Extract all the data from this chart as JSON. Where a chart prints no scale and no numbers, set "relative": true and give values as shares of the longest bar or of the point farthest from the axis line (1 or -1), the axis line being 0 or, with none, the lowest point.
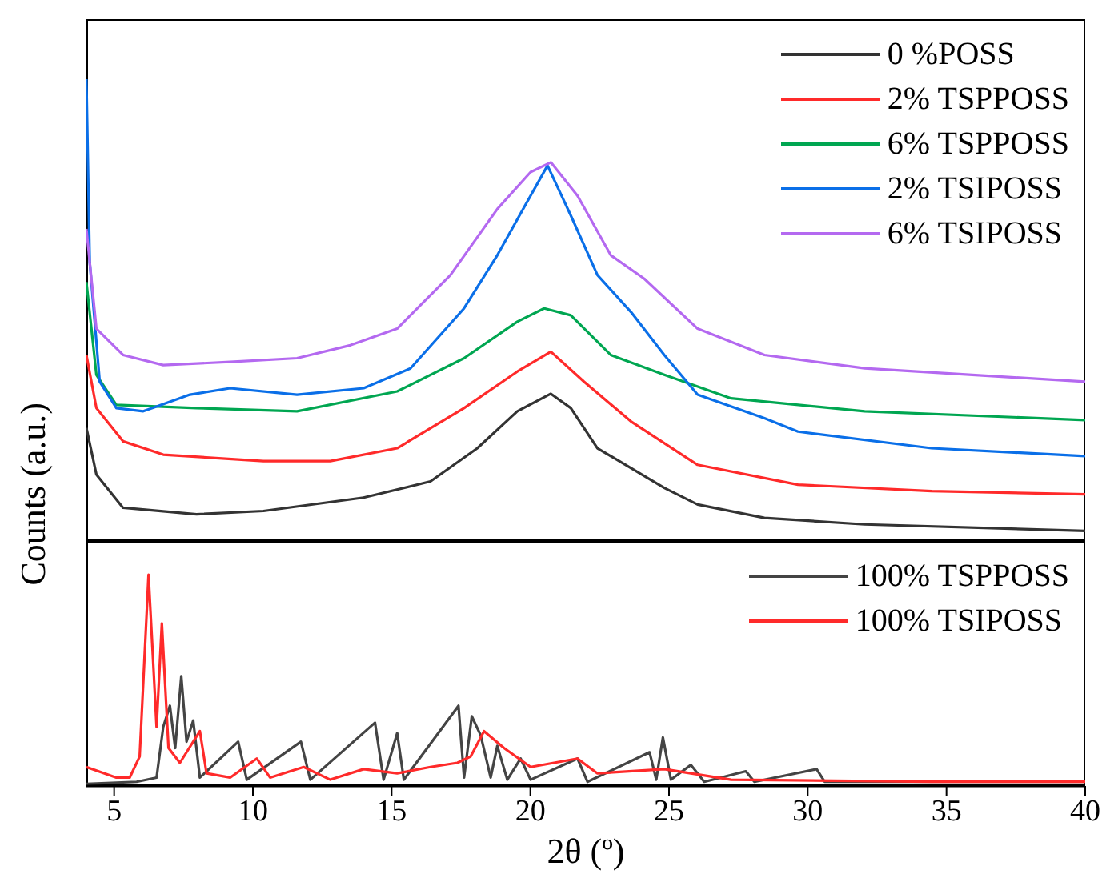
{
  "chart_data": [
    {
      "type": "line",
      "relative": true,
      "ylabel": "Counts (a.u.)",
      "xlim": [
        4,
        40
      ],
      "xticks": [
        5,
        10,
        15,
        20,
        25,
        30,
        35,
        40
      ],
      "tick_labels": false,
      "legend": "top right",
      "series": [
        {
          "name": "0 %POSS",
          "color": "#333333",
          "x": [
            4,
            4.36,
            5.32,
            7.97,
            10.38,
            13.99,
            16.4,
            18.09,
            19.53,
            20.74,
            21.46,
            22.42,
            23.63,
            24.83,
            26.03,
            28.44,
            32.05,
            40
          ],
          "values": [
            0.245,
            0.144,
            0.072,
            0.058,
            0.065,
            0.094,
            0.129,
            0.201,
            0.281,
            0.319,
            0.288,
            0.201,
            0.158,
            0.115,
            0.079,
            0.05,
            0.036,
            0.022
          ]
        },
        {
          "name": "2% TSPPOSS",
          "color": "#ff2a2a",
          "x": [
            4,
            4.36,
            5.32,
            6.77,
            10.38,
            12.79,
            15.2,
            17.61,
            19.53,
            20.74,
            21.94,
            23.63,
            26.03,
            29.65,
            34.46,
            40
          ],
          "values": [
            0.403,
            0.288,
            0.216,
            0.187,
            0.173,
            0.173,
            0.201,
            0.288,
            0.367,
            0.41,
            0.345,
            0.259,
            0.165,
            0.122,
            0.108,
            0.101
          ]
        },
        {
          "name": "6% TSPPOSS",
          "color": "#00a651",
          "x": [
            4,
            4.36,
            5.08,
            7.97,
            11.59,
            15.2,
            17.61,
            19.53,
            20.5,
            21.46,
            22.9,
            24.83,
            27.24,
            32.05,
            40
          ],
          "values": [
            0.561,
            0.36,
            0.295,
            0.288,
            0.281,
            0.324,
            0.396,
            0.475,
            0.504,
            0.489,
            0.403,
            0.36,
            0.309,
            0.281,
            0.262
          ]
        },
        {
          "name": "2% TSIPOSS",
          "color": "#0a6fe8",
          "x": [
            4,
            4.12,
            4.48,
            5.08,
            6.05,
            7.73,
            9.18,
            11.59,
            13.99,
            15.68,
            17.61,
            18.81,
            20.01,
            20.62,
            21.46,
            22.42,
            23.63,
            24.83,
            26.03,
            28.44,
            29.65,
            34.46,
            40
          ],
          "values": [
            1,
            0.604,
            0.345,
            0.288,
            0.281,
            0.317,
            0.331,
            0.317,
            0.331,
            0.374,
            0.504,
            0.619,
            0.748,
            0.813,
            0.705,
            0.576,
            0.496,
            0.403,
            0.317,
            0.266,
            0.237,
            0.201,
            0.184
          ]
        },
        {
          "name": "6% TSIPOSS",
          "color": "#b469f0",
          "x": [
            4,
            4.36,
            5.32,
            6.77,
            9.18,
            11.59,
            13.51,
            15.2,
            17.12,
            18.81,
            20.01,
            20.74,
            21.7,
            22.9,
            24.11,
            26.03,
            28.44,
            32.05,
            40
          ],
          "values": [
            0.676,
            0.46,
            0.403,
            0.381,
            0.388,
            0.396,
            0.424,
            0.46,
            0.576,
            0.719,
            0.799,
            0.82,
            0.748,
            0.619,
            0.568,
            0.46,
            0.403,
            0.374,
            0.345
          ]
        }
      ]
    },
    {
      "type": "line",
      "relative": true,
      "xlabel": "2θ (º)",
      "xlim": [
        4,
        40
      ],
      "xticks": [
        5,
        10,
        15,
        20,
        25,
        30,
        35,
        40
      ],
      "tick_labels": "x",
      "legend": "top right",
      "series": [
        {
          "name": "100% TSPPOSS",
          "color": "#444444",
          "x": [
            4,
            5.81,
            6.53,
            6.77,
            7.01,
            7.2,
            7.42,
            7.61,
            7.85,
            8.09,
            9.47,
            9.78,
            11.73,
            12.07,
            14.4,
            14.71,
            15.2,
            15.44,
            17.41,
            17.61,
            17.89,
            18.21,
            18.57,
            18.81,
            19.17,
            19.65,
            20.01,
            21.7,
            22.06,
            24.3,
            24.54,
            24.78,
            25.07,
            25.79,
            26.27,
            27.77,
            28.08,
            30.32,
            30.61,
            40
          ],
          "values": [
            0.01,
            0.02,
            0.04,
            0.28,
            0.38,
            0.18,
            0.52,
            0.21,
            0.31,
            0.04,
            0.21,
            0.03,
            0.21,
            0.03,
            0.3,
            0.03,
            0.25,
            0.03,
            0.38,
            0.04,
            0.33,
            0.24,
            0.04,
            0.19,
            0.03,
            0.13,
            0.03,
            0.13,
            0.02,
            0.16,
            0.03,
            0.23,
            0.03,
            0.1,
            0.02,
            0.07,
            0.02,
            0.08,
            0.02,
            0.02
          ]
        },
        {
          "name": "100% TSIPOSS",
          "color": "#ff2a2a",
          "x": [
            4,
            5.08,
            5.56,
            5.92,
            6.24,
            6.53,
            6.72,
            6.96,
            7.37,
            8.09,
            8.33,
            9.18,
            10.14,
            10.62,
            11.83,
            12.79,
            13.99,
            15.2,
            16.4,
            17.37,
            17.85,
            18.33,
            19.05,
            20.01,
            21.7,
            22.42,
            24.83,
            27.24,
            34.46,
            40
          ],
          "values": [
            0.09,
            0.04,
            0.04,
            0.14,
            1,
            0.28,
            0.77,
            0.18,
            0.11,
            0.26,
            0.06,
            0.04,
            0.13,
            0.04,
            0.09,
            0.03,
            0.08,
            0.06,
            0.09,
            0.11,
            0.14,
            0.26,
            0.18,
            0.09,
            0.13,
            0.06,
            0.08,
            0.03,
            0.02,
            0.02
          ]
        }
      ]
    }
  ]
}
